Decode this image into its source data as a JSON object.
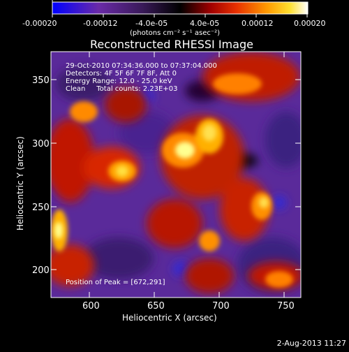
{
  "colorbar": {
    "tick_labels": [
      "-0.00020",
      "-0.00012",
      "-4.0e-05",
      "4.0e-05",
      "0.00012",
      "0.00020"
    ],
    "units": "(photons cm⁻² s⁻¹ asec⁻²)",
    "range": [
      -0.0002,
      0.0002
    ]
  },
  "image": {
    "title": "Reconstructed RHESSI Image",
    "info_lines": [
      "29-Oct-2010 07:34:36.000 to 07:37:04.000",
      "Detectors: 4F 5F 6F 7F 8F, Att 0",
      "Energy Range: 12.0 - 25.0 keV",
      "Clean     Total counts: 2.23E+03"
    ],
    "peak_label": "Position of Peak = [672,291]",
    "x_axis_label": "Heliocentric X (arcsec)",
    "y_axis_label": "Heliocentric Y (arcsec)",
    "x_ticks": [
      600,
      650,
      700,
      750
    ],
    "y_ticks": [
      200,
      250,
      300,
      350
    ],
    "x_range": [
      570,
      762
    ],
    "y_range": [
      182,
      372
    ]
  },
  "footer": {
    "date": "2-Aug-2013 11:27"
  },
  "colors": {
    "colormap_stops": [
      "#1f1fff",
      "#5a2aa8",
      "#3a1f6a",
      "#000000",
      "#8a0000",
      "#e33200",
      "#ff8a00",
      "#ffd200",
      "#ffffd8"
    ]
  }
}
